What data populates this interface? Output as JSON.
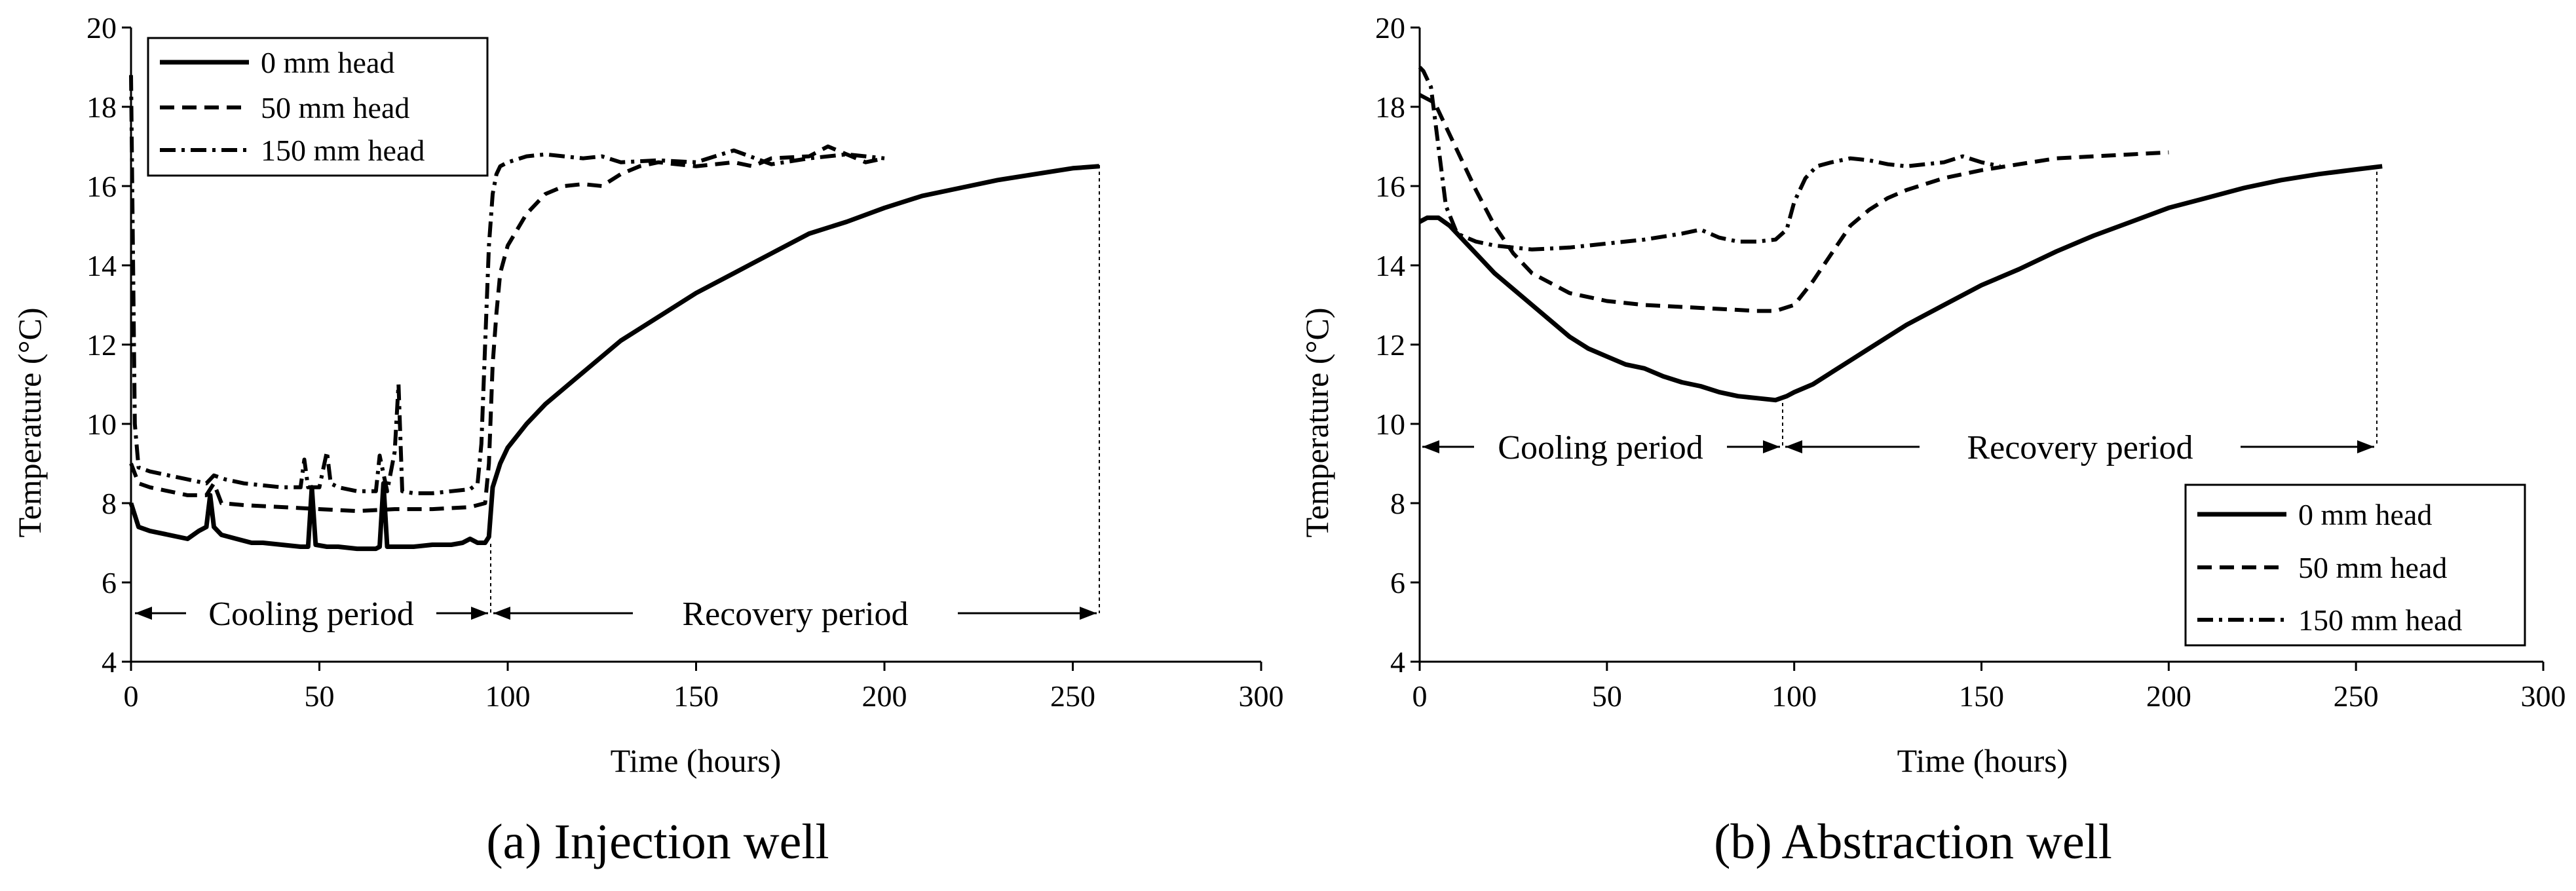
{
  "chart_data": [
    {
      "type": "line",
      "caption": "(a) Injection well",
      "xlabel": "Time (hours)",
      "ylabel": "Temperature (°C)",
      "xlim": [
        0,
        300
      ],
      "ylim": [
        4,
        20
      ],
      "xticks": [
        0,
        50,
        100,
        150,
        200,
        250,
        300
      ],
      "yticks": [
        4,
        6,
        8,
        10,
        12,
        14,
        16,
        18,
        20
      ],
      "legend_position": "top-left",
      "annotations": {
        "cooling": "Cooling period",
        "recovery": "Recovery period",
        "cooling_end": 95,
        "recovery_end": 257
      },
      "series": [
        {
          "name": "0 mm head",
          "x": [
            0,
            2,
            5,
            10,
            15,
            18,
            20,
            21,
            22,
            24,
            28,
            32,
            35,
            40,
            45,
            47,
            48,
            49,
            52,
            55,
            60,
            65,
            66,
            67,
            68,
            70,
            72,
            75,
            80,
            85,
            88,
            90,
            92,
            94,
            95,
            96,
            98,
            100,
            105,
            110,
            115,
            120,
            130,
            140,
            150,
            160,
            170,
            180,
            190,
            200,
            210,
            220,
            230,
            240,
            250,
            257
          ],
          "y": [
            8.0,
            7.4,
            7.3,
            7.2,
            7.1,
            7.3,
            7.4,
            8.2,
            7.4,
            7.2,
            7.1,
            7.0,
            7.0,
            6.95,
            6.9,
            6.9,
            8.4,
            6.95,
            6.9,
            6.9,
            6.85,
            6.85,
            6.9,
            8.5,
            6.9,
            6.9,
            6.9,
            6.9,
            6.95,
            6.95,
            7.0,
            7.1,
            7.0,
            7.0,
            7.15,
            8.4,
            9.0,
            9.4,
            10.0,
            10.5,
            10.9,
            11.3,
            12.1,
            12.7,
            13.3,
            13.8,
            14.3,
            14.8,
            15.1,
            15.45,
            15.75,
            15.95,
            16.15,
            16.3,
            16.45,
            16.5
          ]
        },
        {
          "name": "50 mm head",
          "x": [
            0,
            2,
            5,
            10,
            15,
            20,
            22,
            24,
            30,
            40,
            50,
            60,
            70,
            80,
            90,
            94,
            95,
            96,
            97,
            98,
            100,
            105,
            110,
            115,
            120,
            125,
            130,
            135,
            140,
            150,
            160,
            165,
            170,
            180,
            185,
            190,
            195,
            200
          ],
          "y": [
            9.0,
            8.5,
            8.4,
            8.3,
            8.2,
            8.2,
            8.5,
            8.0,
            7.95,
            7.9,
            7.85,
            7.8,
            7.85,
            7.85,
            7.9,
            8.0,
            9.0,
            11.5,
            12.8,
            13.8,
            14.5,
            15.3,
            15.8,
            16.0,
            16.05,
            16.0,
            16.3,
            16.5,
            16.6,
            16.5,
            16.6,
            16.5,
            16.7,
            16.75,
            17.0,
            16.8,
            16.6,
            16.7
          ]
        },
        {
          "name": "150 mm head",
          "x": [
            0,
            1,
            2,
            5,
            10,
            15,
            20,
            22,
            25,
            30,
            40,
            45,
            46,
            47,
            50,
            52,
            53,
            55,
            60,
            65,
            66,
            68,
            70,
            71,
            72,
            75,
            80,
            85,
            90,
            92,
            93,
            94,
            95,
            96,
            97,
            98,
            100,
            105,
            110,
            120,
            125,
            130,
            140,
            150,
            160,
            170,
            180,
            190,
            200
          ],
          "y": [
            18.8,
            10.0,
            8.9,
            8.8,
            8.7,
            8.6,
            8.5,
            8.7,
            8.6,
            8.5,
            8.4,
            8.4,
            9.1,
            8.4,
            8.4,
            9.3,
            8.5,
            8.4,
            8.3,
            8.3,
            9.2,
            8.3,
            9.3,
            11.0,
            8.3,
            8.25,
            8.25,
            8.3,
            8.35,
            8.5,
            9.5,
            12.0,
            14.5,
            15.8,
            16.3,
            16.5,
            16.6,
            16.75,
            16.8,
            16.7,
            16.75,
            16.6,
            16.65,
            16.6,
            16.9,
            16.55,
            16.7,
            16.8,
            16.7
          ]
        }
      ]
    },
    {
      "type": "line",
      "caption": "(b) Abstraction well",
      "xlabel": "Time (hours)",
      "ylabel": "Temperature (°C)",
      "xlim": [
        0,
        300
      ],
      "ylim": [
        4,
        20
      ],
      "xticks": [
        0,
        50,
        100,
        150,
        200,
        250,
        300
      ],
      "yticks": [
        4,
        6,
        8,
        10,
        12,
        14,
        16,
        18,
        20
      ],
      "legend_position": "bottom-right",
      "annotations": {
        "cooling": "Cooling period",
        "recovery": "Recovery period",
        "cooling_end": 97,
        "recovery_end": 257
      },
      "series": [
        {
          "name": "0 mm head",
          "x": [
            0,
            2,
            5,
            8,
            12,
            16,
            20,
            25,
            30,
            35,
            40,
            45,
            50,
            55,
            60,
            65,
            70,
            75,
            80,
            85,
            90,
            95,
            98,
            100,
            105,
            110,
            115,
            120,
            130,
            140,
            150,
            160,
            170,
            180,
            190,
            200,
            210,
            220,
            230,
            240,
            250,
            257
          ],
          "y": [
            15.1,
            15.2,
            15.2,
            15.0,
            14.6,
            14.2,
            13.8,
            13.4,
            13.0,
            12.6,
            12.2,
            11.9,
            11.7,
            11.5,
            11.4,
            11.2,
            11.05,
            10.95,
            10.8,
            10.7,
            10.65,
            10.6,
            10.7,
            10.8,
            11.0,
            11.3,
            11.6,
            11.9,
            12.5,
            13.0,
            13.5,
            13.9,
            14.35,
            14.75,
            15.1,
            15.45,
            15.7,
            15.95,
            16.15,
            16.3,
            16.42,
            16.5
          ]
        },
        {
          "name": "50 mm head",
          "x": [
            0,
            2,
            4,
            6,
            10,
            15,
            20,
            25,
            30,
            40,
            50,
            60,
            70,
            80,
            90,
            95,
            100,
            105,
            110,
            115,
            120,
            125,
            130,
            140,
            150,
            160,
            170,
            180,
            190,
            200
          ],
          "y": [
            18.3,
            18.2,
            18.1,
            17.7,
            16.9,
            15.9,
            15.0,
            14.3,
            13.8,
            13.3,
            13.1,
            13.0,
            12.95,
            12.9,
            12.85,
            12.85,
            13.0,
            13.6,
            14.3,
            15.0,
            15.4,
            15.7,
            15.9,
            16.2,
            16.4,
            16.55,
            16.7,
            16.75,
            16.8,
            16.85
          ]
        },
        {
          "name": "150 mm head",
          "x": [
            0,
            1,
            3,
            5,
            7,
            10,
            15,
            20,
            30,
            40,
            50,
            60,
            70,
            75,
            80,
            85,
            90,
            95,
            98,
            100,
            103,
            106,
            110,
            115,
            120,
            125,
            130,
            135,
            140,
            145,
            150,
            155
          ],
          "y": [
            19.0,
            18.9,
            18.5,
            17.0,
            15.5,
            14.8,
            14.6,
            14.5,
            14.4,
            14.45,
            14.55,
            14.65,
            14.8,
            14.9,
            14.7,
            14.6,
            14.6,
            14.65,
            14.9,
            15.6,
            16.2,
            16.5,
            16.6,
            16.7,
            16.65,
            16.55,
            16.5,
            16.55,
            16.6,
            16.75,
            16.6,
            16.5
          ]
        }
      ]
    }
  ]
}
